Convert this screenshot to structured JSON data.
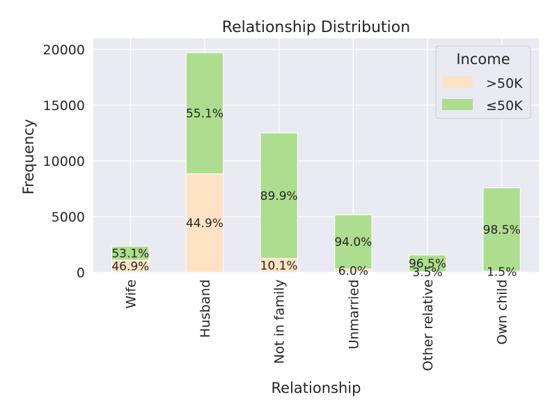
{
  "chart_data": {
    "type": "bar",
    "stacked": true,
    "title": "Relationship Distribution",
    "xlabel": "Relationship",
    "ylabel": "Frequency",
    "ylim": [
      0,
      21000
    ],
    "yticks": [
      0,
      5000,
      10000,
      15000,
      20000
    ],
    "grid": true,
    "categories": [
      "Wife",
      "Husband",
      "Not in family",
      "Unmarried",
      "Other relative",
      "Own child"
    ],
    "series": [
      {
        "name": ">50K",
        "color": "#fde3c4",
        "values": [
          1100,
          8850,
          1260,
          310,
          55,
          115
        ],
        "labels": [
          "46.9%",
          "44.9%",
          "10.1%",
          "6.0%",
          "3.5%",
          "1.5%"
        ]
      },
      {
        "name": "≤50K",
        "color": "#addd8e",
        "values": [
          1250,
          10850,
          11250,
          4850,
          1500,
          7470
        ],
        "labels": [
          "53.1%",
          "55.1%",
          "89.9%",
          "94.0%",
          "96.5%",
          "98.5%"
        ]
      }
    ],
    "legend": {
      "title": "Income",
      "position": "top-right"
    }
  }
}
